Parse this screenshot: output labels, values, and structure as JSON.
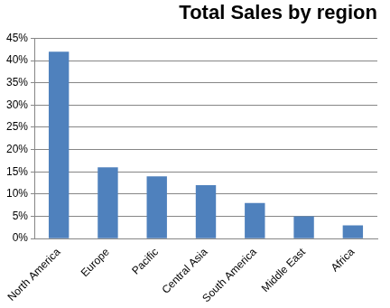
{
  "chart_data": {
    "type": "bar",
    "title": "Total Sales by region",
    "categories": [
      "North America",
      "Europe",
      "Pacific",
      "Central Asia",
      "South America",
      "Middle East",
      "Africa"
    ],
    "values": [
      42,
      16,
      14,
      12,
      8,
      5,
      3
    ],
    "color": "#4f81bd",
    "ylim": [
      0,
      45
    ],
    "yticks": [
      {
        "value": 0,
        "label": "0%"
      },
      {
        "value": 5,
        "label": "5%"
      },
      {
        "value": 10,
        "label": "10%"
      },
      {
        "value": 15,
        "label": "15%"
      },
      {
        "value": 20,
        "label": "20%"
      },
      {
        "value": 25,
        "label": "25%"
      },
      {
        "value": 30,
        "label": "30%"
      },
      {
        "value": 35,
        "label": "35%"
      },
      {
        "value": 40,
        "label": "40%"
      },
      {
        "value": 45,
        "label": "45%"
      }
    ],
    "grid": true
  }
}
